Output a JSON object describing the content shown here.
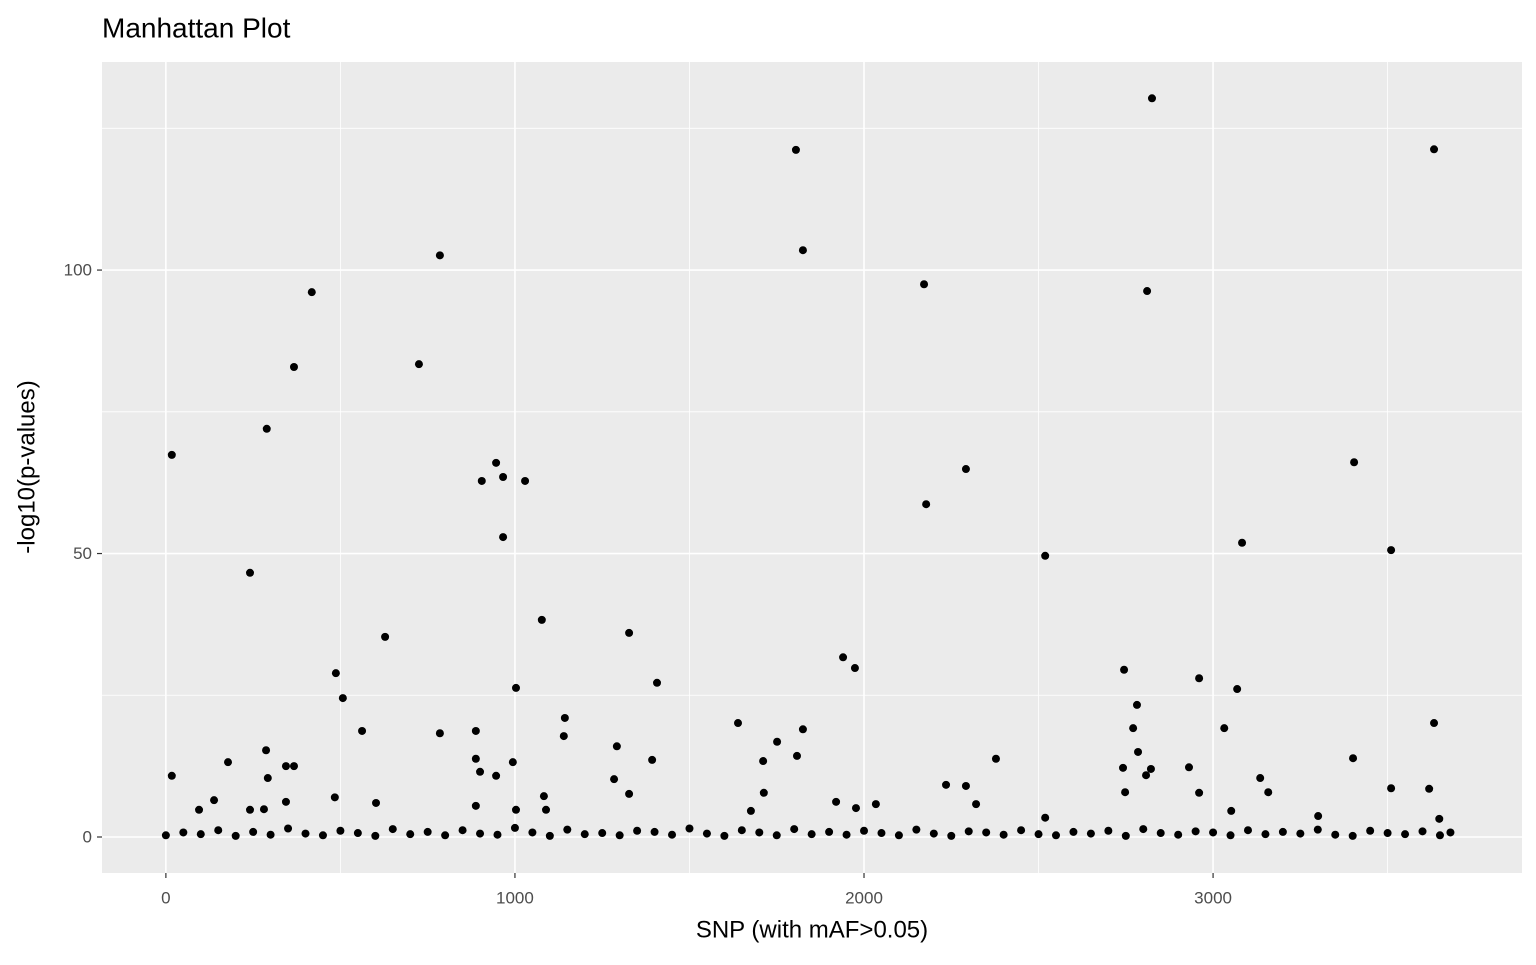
{
  "chart_data": {
    "type": "scatter",
    "title": "Manhattan Plot",
    "x_label": "SNP (with mAF>0.05)",
    "y_label": "-log10(p-values)",
    "color": "#000000",
    "grid": true,
    "xlim": [
      -183,
      3885
    ],
    "ylim": [
      -6.35,
      136.7
    ],
    "xticks": [
      0,
      1000,
      2000,
      3000
    ],
    "yticks": [
      0,
      50,
      100
    ],
    "xminorticks": [
      500,
      1500,
      2500,
      3500
    ],
    "yminorticks": [
      25,
      75,
      125
    ],
    "series": [
      {
        "name": "SNP",
        "x": [
          17,
          17,
          241,
          289,
          367,
          418,
          725,
          785,
          487,
          507,
          628,
          562,
          287,
          292,
          344,
          367,
          178,
          905,
          946,
          966,
          966,
          1029,
          1003,
          1077,
          888,
          888,
          900,
          946,
          994,
          1143,
          1140,
          785,
          1327,
          1292,
          1284,
          1407,
          1393,
          1639,
          1751,
          1711,
          1805,
          1825,
          1825,
          1808,
          1940,
          1974,
          2172,
          2178,
          2292,
          2378,
          2519,
          2825,
          2811,
          2745,
          2782,
          2771,
          2785,
          2742,
          2822,
          2808,
          2960,
          3069,
          3083,
          3032,
          2931,
          3135,
          3404,
          3401,
          3510,
          3510,
          3633,
          3633,
          3619,
          2235,
          2292,
          2960,
          3158,
          1327,
          1083,
          484,
          1713,
          2748,
          138,
          602,
          344,
          1920,
          2034,
          2321,
          95,
          241,
          281,
          888,
          1003,
          1089,
          1676,
          1977,
          3052,
          2519,
          3301,
          3648,
          0,
          50,
          100,
          150,
          200,
          250,
          300,
          350,
          400,
          450,
          500,
          550,
          600,
          650,
          700,
          750,
          800,
          850,
          900,
          950,
          1000,
          1050,
          1100,
          1150,
          1200,
          1250,
          1300,
          1350,
          1400,
          1450,
          1500,
          1550,
          1600,
          1650,
          1700,
          1750,
          1800,
          1850,
          1900,
          1950,
          2000,
          2050,
          2100,
          2150,
          2200,
          2250,
          2300,
          2350,
          2400,
          2450,
          2500,
          2550,
          2600,
          2650,
          2700,
          2750,
          2800,
          2850,
          2900,
          2950,
          3000,
          3050,
          3100,
          3150,
          3200,
          3250,
          3300,
          3350,
          3400,
          3450,
          3500,
          3550,
          3600,
          3650,
          3680
        ],
        "values": [
          67.4,
          10.8,
          46.6,
          72,
          82.9,
          96.1,
          83.4,
          102.6,
          28.9,
          24.5,
          35.3,
          18.7,
          15.3,
          10.4,
          12.5,
          12.5,
          13.2,
          62.8,
          66,
          63.5,
          52.9,
          62.8,
          26.3,
          38.3,
          18.7,
          13.8,
          11.5,
          10.8,
          13.2,
          21,
          17.8,
          18.3,
          36,
          16,
          10.2,
          27.2,
          13.6,
          20.1,
          16.8,
          13.4,
          121.2,
          103.5,
          19,
          14.3,
          31.7,
          29.8,
          97.5,
          58.7,
          64.9,
          13.8,
          49.6,
          130.3,
          96.3,
          29.5,
          23.3,
          19.2,
          15,
          12.2,
          12,
          10.9,
          28,
          26.1,
          51.9,
          19.2,
          12.3,
          10.4,
          66.1,
          13.9,
          50.6,
          8.6,
          121.3,
          20.1,
          8.5,
          9.2,
          9,
          7.8,
          7.9,
          7.6,
          7.2,
          7,
          7.8,
          7.9,
          6.5,
          6,
          6.2,
          6.2,
          5.8,
          5.8,
          4.8,
          4.8,
          4.9,
          5.5,
          4.8,
          4.8,
          4.6,
          5.1,
          4.6,
          3.4,
          3.7,
          3.2,
          0.3,
          0.8,
          0.5,
          1.2,
          0.2,
          0.9,
          0.4,
          1.5,
          0.6,
          0.3,
          1.1,
          0.7,
          0.2,
          1.4,
          0.5,
          0.9,
          0.3,
          1.2,
          0.6,
          0.4,
          1.6,
          0.8,
          0.2,
          1.3,
          0.5,
          0.7,
          0.3,
          1.1,
          0.9,
          0.4,
          1.5,
          0.6,
          0.2,
          1.2,
          0.8,
          0.3,
          1.4,
          0.5,
          0.9,
          0.4,
          1.1,
          0.7,
          0.3,
          1.3,
          0.6,
          0.2,
          1,
          0.8,
          0.4,
          1.2,
          0.5,
          0.3,
          0.9,
          0.6,
          1.1,
          0.2,
          1.4,
          0.7,
          0.4,
          1,
          0.8,
          0.3,
          1.2,
          0.5,
          0.9,
          0.6,
          1.3,
          0.4,
          0.2,
          1.1,
          0.7,
          0.5,
          1,
          0.3,
          0.8
        ]
      }
    ]
  }
}
